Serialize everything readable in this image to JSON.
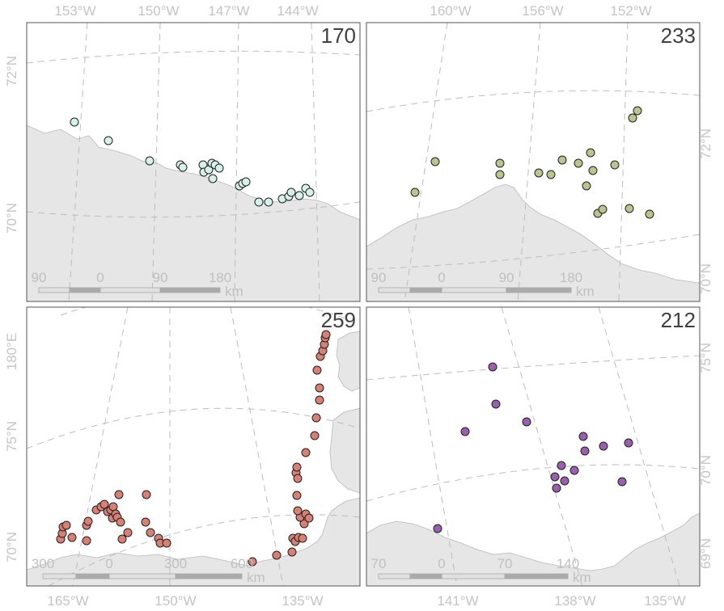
{
  "panels": [
    {
      "id": "p170",
      "label": "170",
      "color": "#d6f0ea",
      "scale_labels": [
        "90",
        "0",
        "90",
        "180"
      ],
      "scale_unit": "km",
      "top_labels": [
        "153°W",
        "150°W",
        "147°W",
        "144°W"
      ],
      "left_labels": [
        "72°N",
        "70°N"
      ],
      "points": [
        [
          92,
          151
        ],
        [
          134,
          174
        ],
        [
          185,
          199
        ],
        [
          223,
          204
        ],
        [
          226,
          207
        ],
        [
          251,
          204
        ],
        [
          252,
          213
        ],
        [
          258,
          210
        ],
        [
          262,
          202
        ],
        [
          266,
          204
        ],
        [
          263,
          221
        ],
        [
          271,
          208
        ],
        [
          296,
          230
        ],
        [
          300,
          227
        ],
        [
          304,
          225
        ],
        [
          320,
          250
        ],
        [
          332,
          250
        ],
        [
          349,
          246
        ],
        [
          357,
          243
        ],
        [
          360,
          238
        ],
        [
          370,
          242
        ],
        [
          378,
          233
        ],
        [
          383,
          238
        ]
      ]
    },
    {
      "id": "p233",
      "label": "233",
      "color": "#b8c68e",
      "scale_labels": [
        "90",
        "0",
        "90",
        "180"
      ],
      "scale_unit": "km",
      "top_labels": [
        "160°W",
        "156°W",
        "152°W"
      ],
      "right_labels": [
        "72°N",
        "70°N"
      ],
      "points": [
        [
          513,
          238
        ],
        [
          538,
          200
        ],
        [
          618,
          202
        ],
        [
          618,
          216
        ],
        [
          666,
          214
        ],
        [
          681,
          216
        ],
        [
          695,
          198
        ],
        [
          715,
          202
        ],
        [
          730,
          189
        ],
        [
          733,
          211
        ],
        [
          725,
          230
        ],
        [
          739,
          264
        ],
        [
          745,
          259
        ],
        [
          760,
          204
        ],
        [
          778,
          258
        ],
        [
          782,
          146
        ],
        [
          788,
          137
        ],
        [
          803,
          265
        ]
      ]
    },
    {
      "id": "p259",
      "label": "259",
      "color": "#d98074",
      "scale_labels": [
        "300",
        "0",
        "300",
        "600"
      ],
      "scale_unit": "km",
      "bottom_labels": [
        "165°W",
        "150°W",
        "135°W"
      ],
      "left_labels": [
        "180°E",
        "75°N",
        "70°N"
      ],
      "points": [
        [
          75,
          667
        ],
        [
          77,
          660
        ],
        [
          78,
          652
        ],
        [
          82,
          650
        ],
        [
          89,
          665
        ],
        [
          107,
          669
        ],
        [
          107,
          650
        ],
        [
          109,
          645
        ],
        [
          119,
          631
        ],
        [
          125,
          627
        ],
        [
          129,
          624
        ],
        [
          133,
          633
        ],
        [
          137,
          631
        ],
        [
          139,
          641
        ],
        [
          140,
          627
        ],
        [
          143,
          636
        ],
        [
          147,
          612
        ],
        [
          145,
          640
        ],
        [
          149,
          646
        ],
        [
          151,
          667
        ],
        [
          158,
          659
        ],
        [
          181,
          612
        ],
        [
          180,
          646
        ],
        [
          186,
          659
        ],
        [
          196,
          666
        ],
        [
          198,
          672
        ],
        [
          206,
          672
        ],
        [
          312,
          695
        ],
        [
          342,
          687
        ],
        [
          361,
          683
        ],
        [
          362,
          666
        ],
        [
          365,
          670
        ],
        [
          369,
          665
        ],
        [
          374,
          666
        ],
        [
          376,
          648
        ],
        [
          371,
          640
        ],
        [
          368,
          632
        ],
        [
          367,
          613
        ],
        [
          366,
          585
        ],
        [
          367,
          578
        ],
        [
          368,
          592
        ],
        [
          378,
          560
        ],
        [
          378,
          636
        ],
        [
          382,
          641
        ],
        [
          389,
          539
        ],
        [
          391,
          517
        ],
        [
          395,
          495
        ],
        [
          395,
          480
        ],
        [
          392,
          458
        ],
        [
          396,
          441
        ],
        [
          399,
          434
        ],
        [
          401,
          426
        ],
        [
          402,
          418
        ],
        [
          403,
          414
        ]
      ]
    },
    {
      "id": "p212",
      "label": "212",
      "color": "#9b5fb0",
      "scale_labels": [
        "70",
        "0",
        "70",
        "140"
      ],
      "scale_unit": "km",
      "bottom_labels": [
        "141°W",
        "138°W",
        "135°W"
      ],
      "right_labels": [
        "75°N",
        "70°N",
        "69°N"
      ],
      "points": [
        [
          609,
          454
        ],
        [
          613,
          500
        ],
        [
          651,
          522
        ],
        [
          575,
          534
        ],
        [
          721,
          540
        ],
        [
          723,
          558
        ],
        [
          746,
          552
        ],
        [
          777,
          548
        ],
        [
          694,
          576
        ],
        [
          710,
          582
        ],
        [
          698,
          595
        ],
        [
          686,
          590
        ],
        [
          688,
          604
        ],
        [
          769,
          596
        ],
        [
          541,
          654
        ]
      ]
    }
  ]
}
